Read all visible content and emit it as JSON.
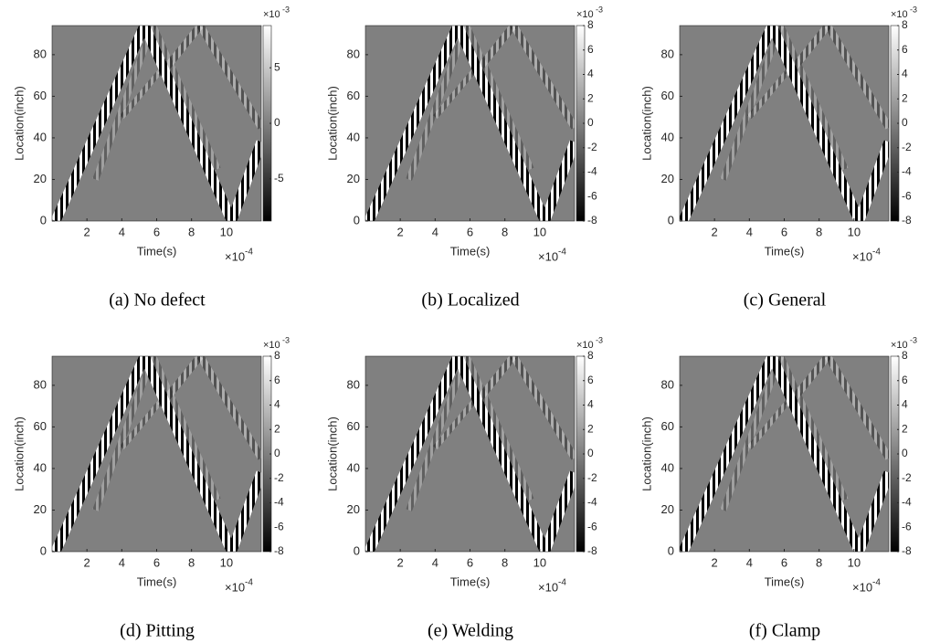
{
  "chart_data": [
    {
      "type": "heatmap",
      "caption": "(a) No defect",
      "xlabel": "Time(s)",
      "ylabel": "Location(inch)",
      "xlim": [
        0,
        12
      ],
      "xticks": [
        2,
        4,
        6,
        8,
        10
      ],
      "ylim": [
        0,
        94
      ],
      "yticks": [
        0,
        20,
        40,
        60,
        80
      ],
      "x_scale_base": "×10",
      "x_scale_exponent": "-4",
      "colorbar": {
        "clim": [
          -8.8,
          8.8
        ],
        "ticks": [
          -5,
          0,
          5
        ],
        "scale_base": "×10",
        "scale_exponent": "-3"
      }
    },
    {
      "type": "heatmap",
      "caption": "(b) Localized",
      "xlabel": "Time(s)",
      "ylabel": "Location(inch)",
      "xlim": [
        0,
        12
      ],
      "xticks": [
        2,
        4,
        6,
        8,
        10
      ],
      "ylim": [
        0,
        94
      ],
      "yticks": [
        0,
        20,
        40,
        60,
        80
      ],
      "x_scale_base": "×10",
      "x_scale_exponent": "-4",
      "colorbar": {
        "clim": [
          -8,
          8
        ],
        "ticks": [
          -8,
          -6,
          -4,
          -2,
          0,
          2,
          4,
          6,
          8
        ],
        "scale_base": "×10",
        "scale_exponent": "-3"
      }
    },
    {
      "type": "heatmap",
      "caption": "(c) General",
      "xlabel": "Time(s)",
      "ylabel": "Location(inch)",
      "xlim": [
        0,
        12
      ],
      "xticks": [
        2,
        4,
        6,
        8,
        10
      ],
      "ylim": [
        0,
        94
      ],
      "yticks": [
        0,
        20,
        40,
        60,
        80
      ],
      "x_scale_base": "×10",
      "x_scale_exponent": "-4",
      "colorbar": {
        "clim": [
          -8,
          8
        ],
        "ticks": [
          -8,
          -6,
          -4,
          -2,
          0,
          2,
          4,
          6,
          8
        ],
        "scale_base": "×10",
        "scale_exponent": "-3"
      }
    },
    {
      "type": "heatmap",
      "caption": "(d) Pitting",
      "xlabel": "Time(s)",
      "ylabel": "Location(inch)",
      "xlim": [
        0,
        12
      ],
      "xticks": [
        2,
        4,
        6,
        8,
        10
      ],
      "ylim": [
        0,
        94
      ],
      "yticks": [
        0,
        20,
        40,
        60,
        80
      ],
      "x_scale_base": "×10",
      "x_scale_exponent": "-4",
      "colorbar": {
        "clim": [
          -8,
          8
        ],
        "ticks": [
          -8,
          -6,
          -4,
          -2,
          0,
          2,
          4,
          6,
          8
        ],
        "scale_base": "×10",
        "scale_exponent": "-3"
      }
    },
    {
      "type": "heatmap",
      "caption": "(e) Welding",
      "xlabel": "Time(s)",
      "ylabel": "Location(inch)",
      "xlim": [
        0,
        12
      ],
      "xticks": [
        2,
        4,
        6,
        8,
        10
      ],
      "ylim": [
        0,
        94
      ],
      "yticks": [
        0,
        20,
        40,
        60,
        80
      ],
      "x_scale_base": "×10",
      "x_scale_exponent": "-4",
      "colorbar": {
        "clim": [
          -8,
          8
        ],
        "ticks": [
          -8,
          -6,
          -4,
          -2,
          0,
          2,
          4,
          6,
          8
        ],
        "scale_base": "×10",
        "scale_exponent": "-3"
      }
    },
    {
      "type": "heatmap",
      "caption": "(f) Clamp",
      "xlabel": "Time(s)",
      "ylabel": "Location(inch)",
      "xlim": [
        0,
        12
      ],
      "xticks": [
        2,
        4,
        6,
        8,
        10
      ],
      "ylim": [
        0,
        94
      ],
      "yticks": [
        0,
        20,
        40,
        60,
        80
      ],
      "x_scale_base": "×10",
      "x_scale_exponent": "-4",
      "colorbar": {
        "clim": [
          -8,
          8
        ],
        "ticks": [
          -8,
          -6,
          -4,
          -2,
          0,
          2,
          4,
          6,
          8
        ],
        "scale_base": "×10",
        "scale_exponent": "-3"
      }
    }
  ]
}
